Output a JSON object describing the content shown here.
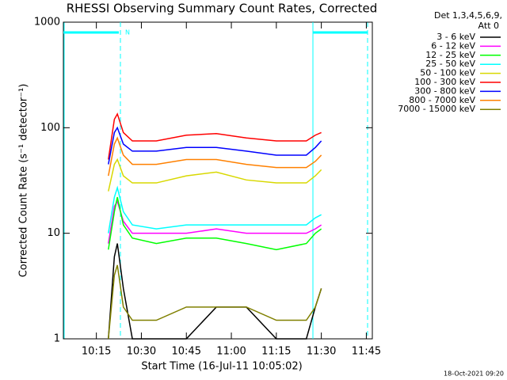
{
  "chart_data": {
    "type": "line",
    "title": "RHESSI Observing Summary Count Rates, Corrected",
    "xlabel": "Start Time (16-Jul-11 10:05:02)",
    "ylabel": "Corrected Count Rate (s⁻¹ detector⁻¹)",
    "legend_title": [
      "Det 1,3,4,5,6,9,",
      "Att 0"
    ],
    "timestamp": "18-Oct-2021 09:20",
    "annotations": [
      "N"
    ],
    "log_y": true,
    "x": [
      "10:19",
      "10:21",
      "10:22",
      "10:24",
      "10:27",
      "10:35",
      "10:45",
      "10:55",
      "11:05",
      "11:15",
      "11:25",
      "11:28",
      "11:30"
    ],
    "xlim": [
      "10:04",
      "11:47"
    ],
    "xticks": [
      "10:15",
      "10:30",
      "10:45",
      "11:00",
      "11:15",
      "11:30",
      "11:45"
    ],
    "ylim": [
      1,
      1000
    ],
    "yticks": [
      1,
      10,
      100,
      1000
    ],
    "series": [
      {
        "name": "3 - 6 keV",
        "color": "#000000",
        "values": [
          1,
          6,
          8,
          3,
          1,
          1,
          1,
          2,
          2,
          1,
          1,
          2,
          3
        ]
      },
      {
        "name": "6 - 12 keV",
        "color": "#ff00ff",
        "values": [
          8,
          18,
          20,
          13,
          10,
          10,
          10,
          11,
          10,
          10,
          10,
          11,
          12
        ]
      },
      {
        "name": "12 - 25 keV",
        "color": "#00ff00",
        "values": [
          7,
          16,
          22,
          12,
          9,
          8,
          9,
          9,
          8,
          7,
          8,
          10,
          11
        ]
      },
      {
        "name": "25 - 50 keV",
        "color": "#00ffff",
        "values": [
          10,
          22,
          27,
          16,
          12,
          11,
          12,
          12,
          12,
          12,
          12,
          14,
          15
        ]
      },
      {
        "name": "50 - 100 keV",
        "color": "#d8d800",
        "values": [
          25,
          45,
          50,
          35,
          30,
          30,
          35,
          38,
          32,
          30,
          30,
          35,
          40
        ]
      },
      {
        "name": "100 - 300 keV",
        "color": "#ff0000",
        "values": [
          50,
          120,
          135,
          90,
          75,
          75,
          85,
          88,
          80,
          75,
          75,
          85,
          90
        ]
      },
      {
        "name": "300 - 800 keV",
        "color": "#0000ff",
        "values": [
          45,
          90,
          100,
          70,
          60,
          60,
          65,
          65,
          60,
          55,
          55,
          65,
          75
        ]
      },
      {
        "name": "800 - 7000 keV",
        "color": "#ff8000",
        "values": [
          35,
          70,
          80,
          55,
          45,
          45,
          50,
          50,
          45,
          42,
          42,
          48,
          55
        ]
      },
      {
        "name": "7000 - 15000 keV",
        "color": "#808000",
        "values": [
          1,
          4,
          5,
          2,
          1.5,
          1.5,
          2,
          2,
          2,
          1.5,
          1.5,
          2,
          3
        ]
      }
    ]
  }
}
